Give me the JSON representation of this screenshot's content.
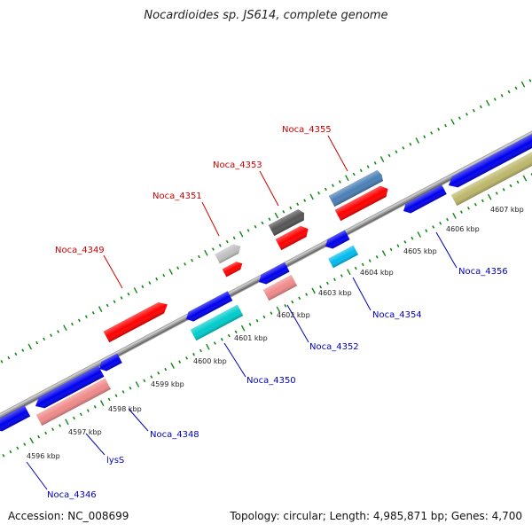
{
  "title": "Nocardioides sp. JS614, complete genome",
  "accession": "Accession: NC_008699",
  "summary": "Topology: circular; Length: 4,985,871 bp; Genes: 4,700",
  "colors": {
    "backbone": "#8c8c8c",
    "forward_label": "#cc0000",
    "reverse_label": "#0000bb",
    "tick": "#118811"
  },
  "kbp_labels": [
    "4596 kbp",
    "4597 kbp",
    "4598 kbp",
    "4599 kbp",
    "4600 kbp",
    "4601 kbp",
    "4602 kbp",
    "4603 kbp",
    "4604 kbp",
    "4605 kbp",
    "4606 kbp",
    "4607 kbp"
  ],
  "genes": {
    "forward": [
      {
        "label": "Noca_4349"
      },
      {
        "label": "Noca_4351"
      },
      {
        "label": "Noca_4353"
      },
      {
        "label": "Noca_4355"
      }
    ],
    "reverse": [
      {
        "label": "Noca_4346"
      },
      {
        "label": "lysS"
      },
      {
        "label": "Noca_4348"
      },
      {
        "label": "Noca_4350"
      },
      {
        "label": "Noca_4352"
      },
      {
        "label": "Noca_4354"
      },
      {
        "label": "Noca_4356"
      }
    ]
  }
}
